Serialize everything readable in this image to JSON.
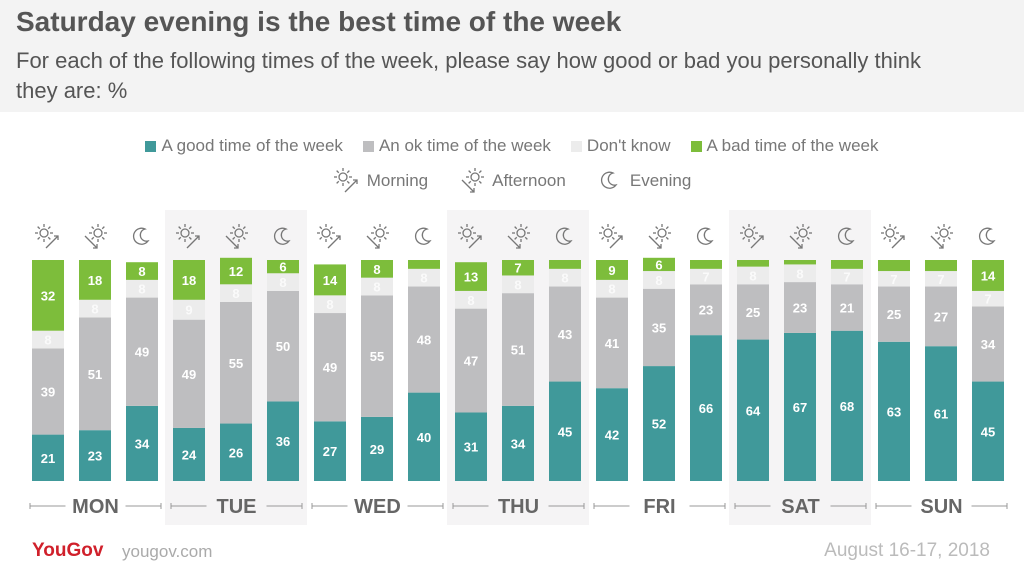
{
  "header": {
    "title": "Saturday evening is the best time of the week",
    "subtitle": "For each of the following times of the week, please say how good or bad you personally think they are: %"
  },
  "footer": {
    "logo": "YouGov",
    "url": "yougov.com",
    "date": "August 16-17, 2018"
  },
  "colors": {
    "good": "#40999a",
    "ok": "#bebec0",
    "dk": "#ececec",
    "bad": "#7dbd3b",
    "band": "#f5f4f5"
  },
  "chart_data": {
    "type": "bar",
    "stacked": true,
    "title": "Saturday evening is the best time of the week",
    "ylim": [
      0,
      100
    ],
    "days": [
      "MON",
      "TUE",
      "WED",
      "THU",
      "FRI",
      "SAT",
      "SUN"
    ],
    "times": [
      "Morning",
      "Afternoon",
      "Evening"
    ],
    "legend": [
      {
        "key": "good",
        "label": "A good time of the week"
      },
      {
        "key": "ok",
        "label": "An ok time of the week"
      },
      {
        "key": "dk",
        "label": "Don't know"
      },
      {
        "key": "bad",
        "label": "A bad time of the week"
      }
    ],
    "time_legend": [
      {
        "icon": "morning",
        "label": "Morning"
      },
      {
        "icon": "afternoon",
        "label": "Afternoon"
      },
      {
        "icon": "evening",
        "label": "Evening"
      }
    ],
    "series": [
      {
        "name": "A good time of the week",
        "key": "good",
        "values": [
          21,
          23,
          34,
          24,
          26,
          36,
          27,
          29,
          40,
          31,
          34,
          45,
          42,
          52,
          66,
          64,
          67,
          68,
          63,
          61,
          45
        ]
      },
      {
        "name": "An ok time of the week",
        "key": "ok",
        "values": [
          39,
          51,
          49,
          49,
          55,
          50,
          49,
          55,
          48,
          47,
          51,
          43,
          41,
          35,
          23,
          25,
          23,
          21,
          25,
          27,
          34
        ]
      },
      {
        "name": "Don't know",
        "key": "dk",
        "values": [
          8,
          8,
          8,
          9,
          8,
          8,
          8,
          8,
          8,
          8,
          8,
          8,
          8,
          8,
          7,
          8,
          8,
          7,
          7,
          7,
          7
        ]
      },
      {
        "name": "A bad time of the week",
        "key": "bad",
        "values": [
          32,
          18,
          8,
          18,
          12,
          6,
          14,
          8,
          4,
          13,
          7,
          4,
          9,
          6,
          4,
          3,
          2,
          4,
          5,
          5,
          14
        ]
      }
    ]
  }
}
